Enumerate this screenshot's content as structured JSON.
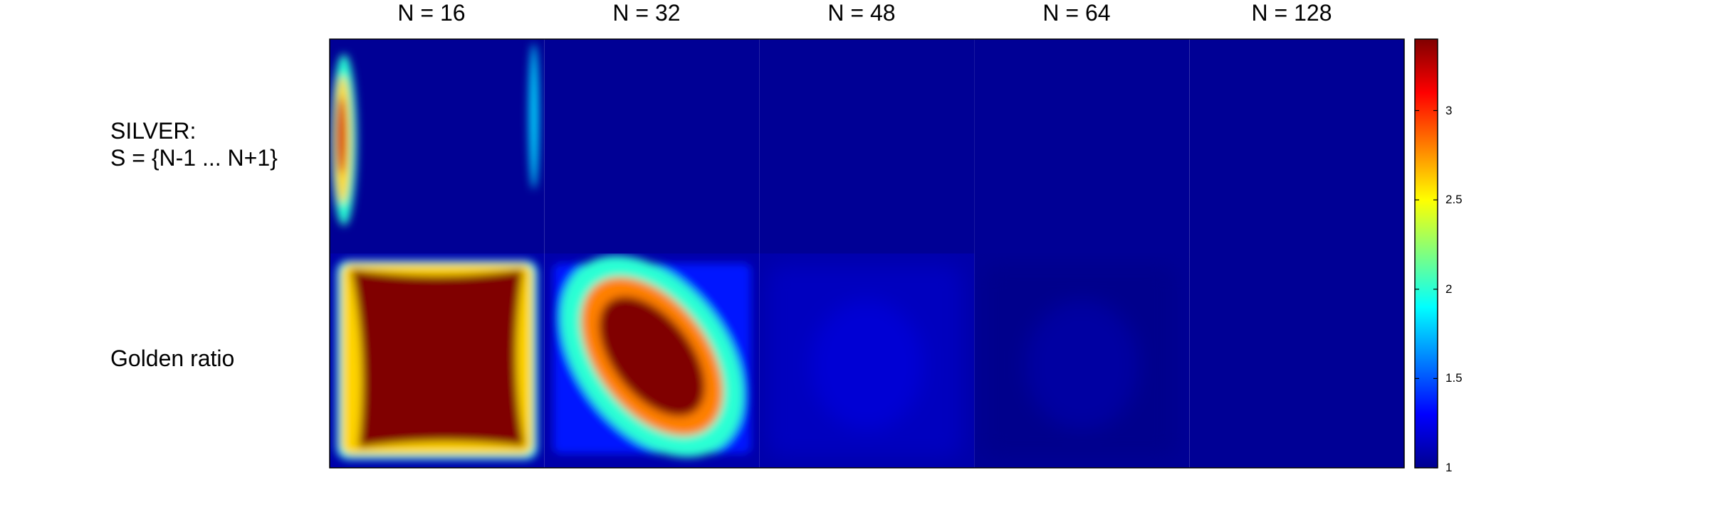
{
  "chart_data": {
    "type": "heatmap",
    "columns": [
      "N = 16",
      "N = 32",
      "N = 48",
      "N = 64",
      "N = 128"
    ],
    "rows": [
      {
        "line1": "SILVER:",
        "line2": "S = {N-1 ... N+1}"
      },
      {
        "line1": "Golden ratio",
        "line2": ""
      }
    ],
    "colorbar": {
      "colormap": "jet",
      "clim": [
        1,
        3.4
      ],
      "ticks": [
        1,
        1.5,
        2,
        2.5,
        3
      ],
      "tick_labels": [
        "1",
        "1.5",
        "2",
        "2.5",
        "3"
      ]
    },
    "cells": [
      {
        "row": 0,
        "col": 0,
        "pattern": "edge-bands",
        "peak": 3.2,
        "background": 1.05
      },
      {
        "row": 0,
        "col": 1,
        "pattern": "flat",
        "peak": 1.05,
        "background": 1.05
      },
      {
        "row": 0,
        "col": 2,
        "pattern": "flat",
        "peak": 1.05,
        "background": 1.05
      },
      {
        "row": 0,
        "col": 3,
        "pattern": "flat",
        "peak": 1.05,
        "background": 1.05
      },
      {
        "row": 0,
        "col": 4,
        "pattern": "flat",
        "peak": 1.05,
        "background": 1.05
      },
      {
        "row": 1,
        "col": 0,
        "pattern": "square-plateau",
        "peak": 3.4,
        "background": 1.1
      },
      {
        "row": 1,
        "col": 1,
        "pattern": "diamond",
        "peak": 3.4,
        "background": 1.1
      },
      {
        "row": 1,
        "col": 2,
        "pattern": "faint-blob",
        "peak": 1.2,
        "background": 1.1
      },
      {
        "row": 1,
        "col": 3,
        "pattern": "faint-blob",
        "peak": 1.08,
        "background": 1.05
      },
      {
        "row": 1,
        "col": 4,
        "pattern": "flat",
        "peak": 1.05,
        "background": 1.05
      }
    ]
  }
}
